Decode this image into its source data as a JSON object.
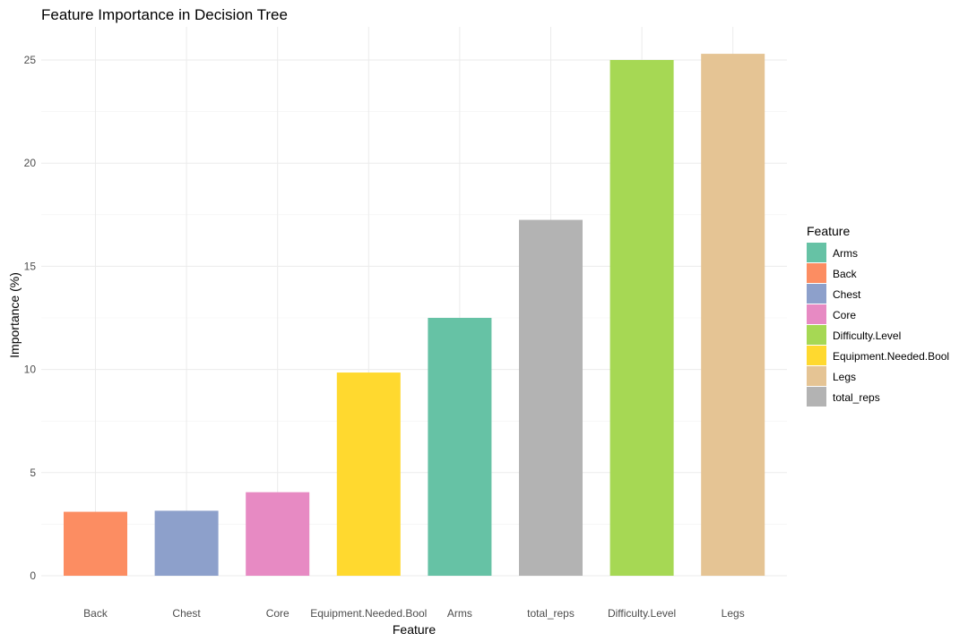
{
  "chart_data": {
    "type": "bar",
    "title": "Feature Importance in Decision Tree",
    "xlabel": "Feature",
    "ylabel": "Importance (%)",
    "ylim": [
      0,
      26.5
    ],
    "yticks": [
      0,
      5,
      10,
      15,
      20,
      25
    ],
    "grid": true,
    "legend_position": "right",
    "legend_title": "Feature",
    "categories": [
      "Back",
      "Chest",
      "Core",
      "Equipment.Needed.Bool",
      "Arms",
      "total_reps",
      "Difficulty.Level",
      "Legs"
    ],
    "values": [
      3.1,
      3.15,
      4.05,
      9.85,
      12.5,
      17.25,
      25.0,
      25.3
    ],
    "colors": {
      "Arms": "#66c2a5",
      "Back": "#fc8d62",
      "Chest": "#8da0cb",
      "Core": "#e78ac3",
      "Difficulty.Level": "#a6d854",
      "Equipment.Needed.Bool": "#ffd92f",
      "Legs": "#e5c494",
      "total_reps": "#b3b3b3"
    },
    "legend_entries": [
      "Arms",
      "Back",
      "Chest",
      "Core",
      "Difficulty.Level",
      "Equipment.Needed.Bool",
      "Legs",
      "total_reps"
    ]
  }
}
